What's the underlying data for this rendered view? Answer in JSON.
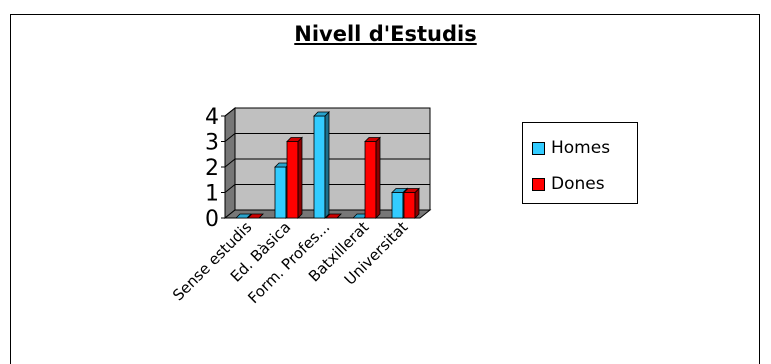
{
  "chart_data": {
    "type": "bar",
    "title": "Nivell d'Estudis",
    "categories": [
      "Sense estudis",
      "Ed. Bàsica",
      "Form. Profes...",
      "Batxillerat",
      "Universitat"
    ],
    "series": [
      {
        "name": "Homes",
        "values": [
          0,
          2,
          4,
          0,
          1
        ],
        "color": "#33CCFF"
      },
      {
        "name": "Dones",
        "values": [
          0,
          3,
          0,
          3,
          1
        ],
        "color": "#FF0000"
      }
    ],
    "yticks": [
      "0",
      "1",
      "2",
      "3",
      "4"
    ],
    "ylim": [
      0,
      4
    ],
    "grid": true,
    "three_d": true,
    "legend_position": "right",
    "plot_background": "#C0C0C0"
  }
}
